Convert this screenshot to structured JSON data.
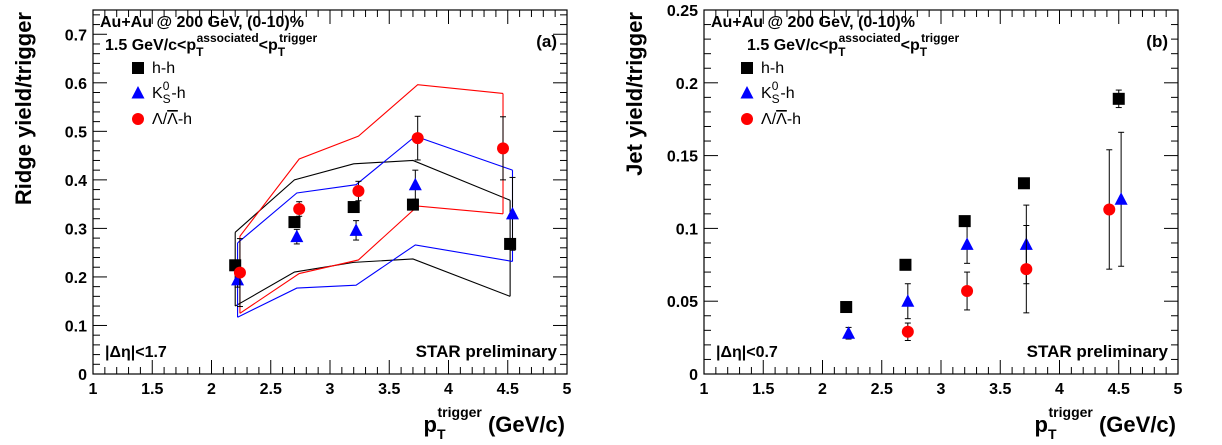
{
  "chart_data": [
    {
      "type": "scatter",
      "panel_label": "(a)",
      "ylabel": "Ridge yield/trigger",
      "xlabel_main": "p",
      "xlabel_sub": "T",
      "xlabel_sup": "trigger",
      "xlabel_unit": " (GeV/c)",
      "header_line1": "Au+Au @ 200 GeV, (0-10)%",
      "header_line2": "1.5 GeV/c<p",
      "header_assoc": "associated",
      "header_trig": "trigger",
      "cut_label": "|Δη|<1.7",
      "preliminary": "STAR preliminary",
      "xlim": [
        1,
        5
      ],
      "ylim": [
        0,
        0.75
      ],
      "xticks": [
        "1",
        "1.5",
        "2",
        "2.5",
        "3",
        "3.5",
        "4",
        "4.5",
        "5"
      ],
      "yticks": [
        "0",
        "0.1",
        "0.2",
        "0.3",
        "0.4",
        "0.5",
        "0.6",
        "0.7"
      ],
      "yticks_values": [
        0,
        0.1,
        0.2,
        0.3,
        0.4,
        0.5,
        0.6,
        0.7
      ],
      "series": [
        {
          "name": "h-h",
          "name_main": "h-h",
          "marker": "square",
          "color": "#000000",
          "x": [
            2.2,
            2.7,
            3.2,
            3.7,
            4.52
          ],
          "y": [
            0.224,
            0.313,
            0.344,
            0.349,
            0.268
          ],
          "yerr": [
            0.006,
            0.006,
            0.006,
            0.006,
            0.006
          ],
          "band_upper": [
            0.292,
            0.4,
            0.433,
            0.44,
            0.358
          ],
          "band_lower": [
            0.14,
            0.21,
            0.23,
            0.237,
            0.16
          ]
        },
        {
          "name": "K0S-h",
          "name_main": "K",
          "name_sub": "S",
          "name_sup": "0",
          "name_tail": "-h",
          "marker": "triangle",
          "color": "#0000ff",
          "x": [
            2.22,
            2.72,
            3.22,
            3.72,
            4.54
          ],
          "y": [
            0.194,
            0.283,
            0.296,
            0.39,
            0.33
          ],
          "yerr": [
            0.015,
            0.015,
            0.02,
            0.03,
            0.075
          ],
          "band_upper": [
            0.27,
            0.373,
            0.39,
            0.49,
            0.42
          ],
          "band_lower": [
            0.117,
            0.177,
            0.183,
            0.266,
            0.232
          ]
        },
        {
          "name": "Λ/Λ-h",
          "name_main": "Λ/",
          "name_over": "Λ",
          "name_tail": "-h",
          "marker": "circle",
          "color": "#ff0000",
          "x": [
            2.24,
            2.74,
            3.24,
            3.74,
            4.46
          ],
          "y": [
            0.209,
            0.34,
            0.377,
            0.486,
            0.465
          ],
          "yerr": [
            0.07,
            0.015,
            0.02,
            0.045,
            0.065
          ],
          "band_upper": [
            0.284,
            0.443,
            0.49,
            0.596,
            0.578
          ],
          "band_lower": [
            0.125,
            0.207,
            0.235,
            0.346,
            0.33
          ]
        }
      ]
    },
    {
      "type": "scatter",
      "panel_label": "(b)",
      "ylabel": "Jet yield/trigger",
      "xlabel_main": "p",
      "xlabel_sub": "T",
      "xlabel_sup": "trigger",
      "xlabel_unit": " (GeV/c)",
      "header_line1": "Au+Au @ 200 GeV, (0-10)%",
      "header_line2": "1.5 GeV/c<p",
      "header_assoc": "associated",
      "header_trig": "trigger",
      "cut_label": "|Δη|<0.7",
      "preliminary": "STAR preliminary",
      "xlim": [
        1,
        5
      ],
      "ylim": [
        0,
        0.25
      ],
      "xticks": [
        "1",
        "1.5",
        "2",
        "2.5",
        "3",
        "3.5",
        "4",
        "4.5",
        "5"
      ],
      "yticks": [
        "0",
        "0.05",
        "0.1",
        "0.15",
        "0.2",
        "0.25"
      ],
      "yticks_values": [
        0,
        0.05,
        0.1,
        0.15,
        0.2,
        0.25
      ],
      "series": [
        {
          "name": "h-h",
          "name_main": "h-h",
          "marker": "square",
          "color": "#000000",
          "x": [
            2.2,
            2.7,
            3.2,
            3.7,
            4.5
          ],
          "y": [
            0.046,
            0.075,
            0.105,
            0.131,
            0.189
          ],
          "yerr": [
            0.001,
            0.001,
            0.002,
            0.002,
            0.006
          ]
        },
        {
          "name": "K0S-h",
          "name_main": "K",
          "name_sub": "S",
          "name_sup": "0",
          "name_tail": "-h",
          "marker": "triangle",
          "color": "#0000ff",
          "x": [
            2.22,
            2.72,
            3.22,
            3.72,
            4.52
          ],
          "y": [
            0.028,
            0.05,
            0.089,
            0.089,
            0.12
          ],
          "yerr": [
            0.004,
            0.012,
            0.013,
            0.027,
            0.046
          ]
        },
        {
          "name": "Λ/Λ-h",
          "name_main": "Λ/",
          "name_over": "Λ",
          "name_tail": "-h",
          "marker": "circle",
          "color": "#ff0000",
          "x": [
            2.72,
            3.22,
            3.72,
            4.42
          ],
          "y": [
            0.029,
            0.057,
            0.072,
            0.113
          ],
          "yerr": [
            0.006,
            0.013,
            0.03,
            0.041
          ]
        }
      ]
    }
  ]
}
